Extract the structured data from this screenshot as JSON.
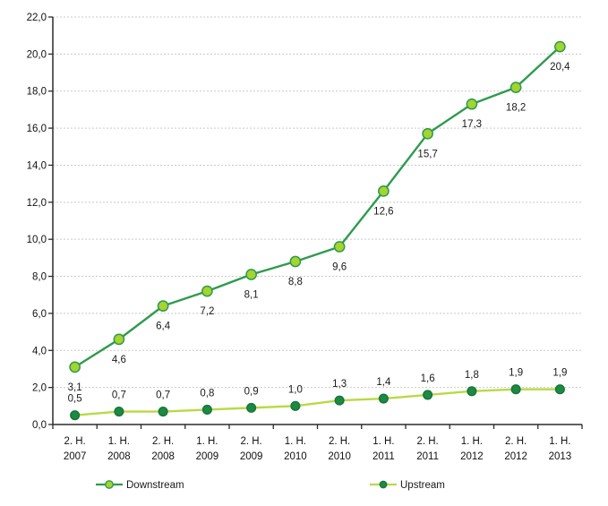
{
  "chart_data": {
    "type": "line",
    "title": "",
    "xlabel": "",
    "ylabel": "",
    "categories": [
      [
        "2. H.",
        "2007"
      ],
      [
        "1. H.",
        "2008"
      ],
      [
        "2. H.",
        "2008"
      ],
      [
        "1. H.",
        "2009"
      ],
      [
        "2. H.",
        "2009"
      ],
      [
        "1. H.",
        "2010"
      ],
      [
        "2. H.",
        "2010"
      ],
      [
        "1. H.",
        "2011"
      ],
      [
        "2. H.",
        "2011"
      ],
      [
        "1. H.",
        "2012"
      ],
      [
        "2. H.",
        "2012"
      ],
      [
        "1. H.",
        "2013"
      ]
    ],
    "series": [
      {
        "name": "Downstream",
        "values": [
          3.1,
          4.6,
          6.4,
          7.2,
          8.1,
          8.8,
          9.6,
          12.6,
          15.7,
          17.3,
          18.2,
          20.4
        ],
        "labels": [
          "3,1",
          "4,6",
          "6,4",
          "7,2",
          "8,1",
          "8,8",
          "9,6",
          "12,6",
          "15,7",
          "17,3",
          "18,2",
          "20,4"
        ],
        "line_color": "#2e9b4e",
        "marker_fill": "#a5d32f",
        "marker_stroke": "#2e9b4e",
        "marker_radius": 5.6,
        "label_side": "below"
      },
      {
        "name": "Upstream",
        "values": [
          0.5,
          0.7,
          0.7,
          0.8,
          0.9,
          1.0,
          1.3,
          1.4,
          1.6,
          1.8,
          1.9,
          1.9
        ],
        "labels": [
          "0,5",
          "0,7",
          "0,7",
          "0,8",
          "0,9",
          "1,0",
          "1,3",
          "1,4",
          "1,6",
          "1,8",
          "1,9",
          "1,9"
        ],
        "line_color": "#b8da45",
        "marker_fill": "#1d8943",
        "marker_stroke": "#17763a",
        "marker_radius": 4.8,
        "label_side": "above"
      }
    ],
    "ylim": [
      0,
      22
    ],
    "ytick_step": 2,
    "ytick_labels": [
      "0,0",
      "2,0",
      "4,0",
      "6,0",
      "8,0",
      "10,0",
      "12,0",
      "14,0",
      "16,0",
      "18,0",
      "20,0",
      "22,0"
    ],
    "grid": true,
    "legend_position": "bottom",
    "axis_color": "#2b2b2b",
    "grid_color": "#c9c9c9",
    "text_color": "#1a1a1a"
  }
}
